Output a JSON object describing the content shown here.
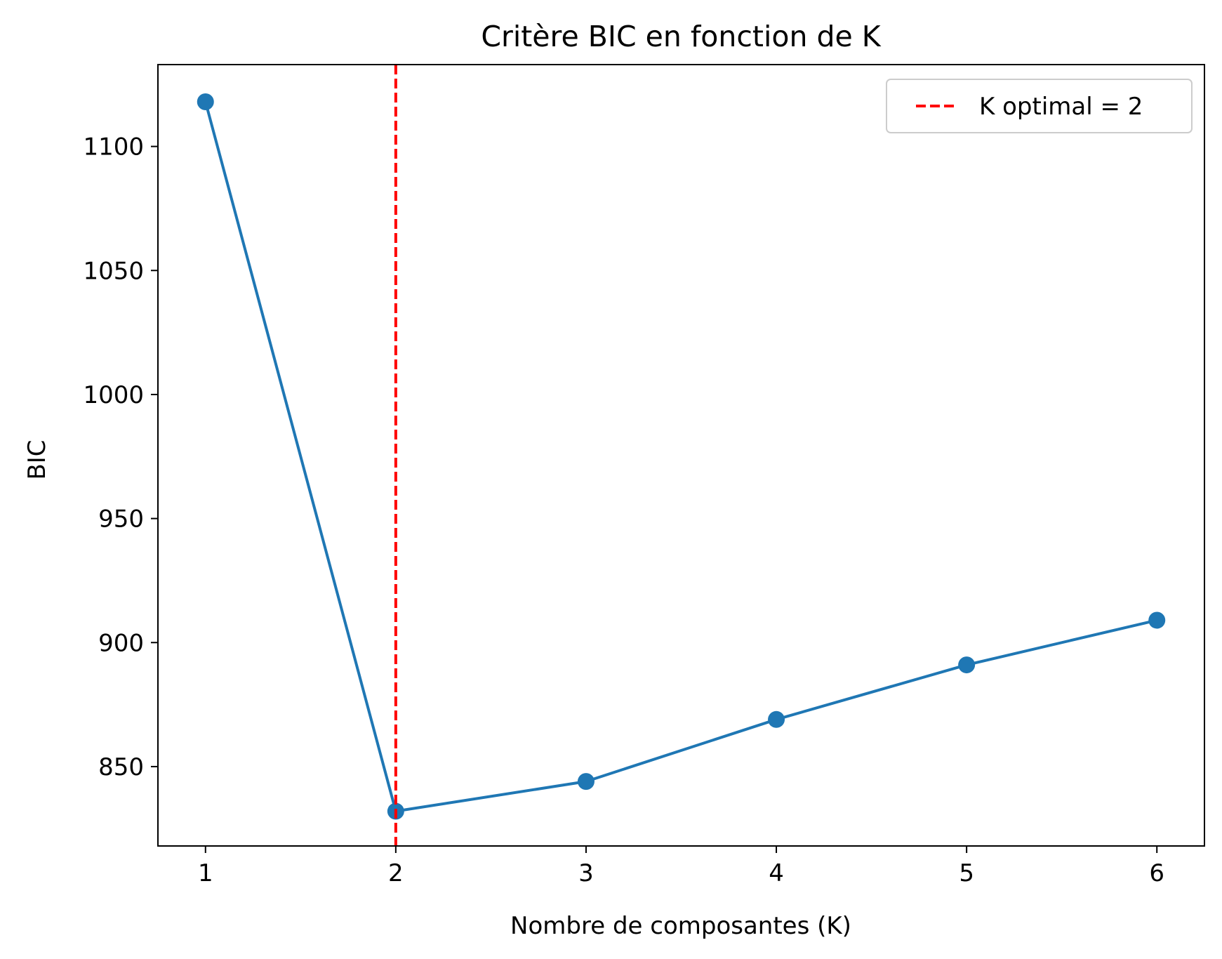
{
  "chart_data": {
    "type": "line",
    "title": "Critère BIC en fonction de K",
    "xlabel": "Nombre de composantes (K)",
    "ylabel": "BIC",
    "x": [
      1,
      2,
      3,
      4,
      5,
      6
    ],
    "series": [
      {
        "values": [
          1118,
          832,
          844,
          869,
          891,
          909
        ],
        "color": "#1f77b4"
      }
    ],
    "reference_line": {
      "axis": "x",
      "value": 2,
      "style": "dashed",
      "color": "#ff0000",
      "label": "K optimal = 2"
    },
    "xticks": [
      "1",
      "2",
      "3",
      "4",
      "5",
      "6"
    ],
    "yticks": [
      "850",
      "900",
      "950",
      "1000",
      "1050",
      "1100"
    ],
    "ytick_values": [
      850,
      900,
      950,
      1000,
      1050,
      1100
    ],
    "xlim": [
      0.75,
      6.25
    ],
    "ylim": [
      818,
      1133
    ],
    "grid": false,
    "legend_position": "top-right"
  }
}
